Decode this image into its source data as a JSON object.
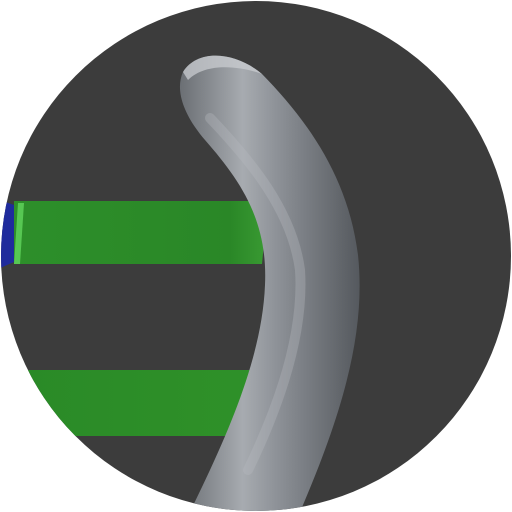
{
  "scene": {
    "background_color": "#ffffff",
    "disc_color": "#3c3c3c",
    "objects": [
      {
        "name": "tube",
        "color": "#8f9398",
        "highlight": "#c8cbcf",
        "shadow": "#5d6166"
      },
      {
        "name": "upper-green-bar",
        "color": "#2c8a2a",
        "highlight": "#4dbb46"
      },
      {
        "name": "lower-green-bar",
        "color": "#2c8a2a"
      },
      {
        "name": "blue-edge-fragment",
        "color": "#1f2b9c"
      }
    ]
  }
}
